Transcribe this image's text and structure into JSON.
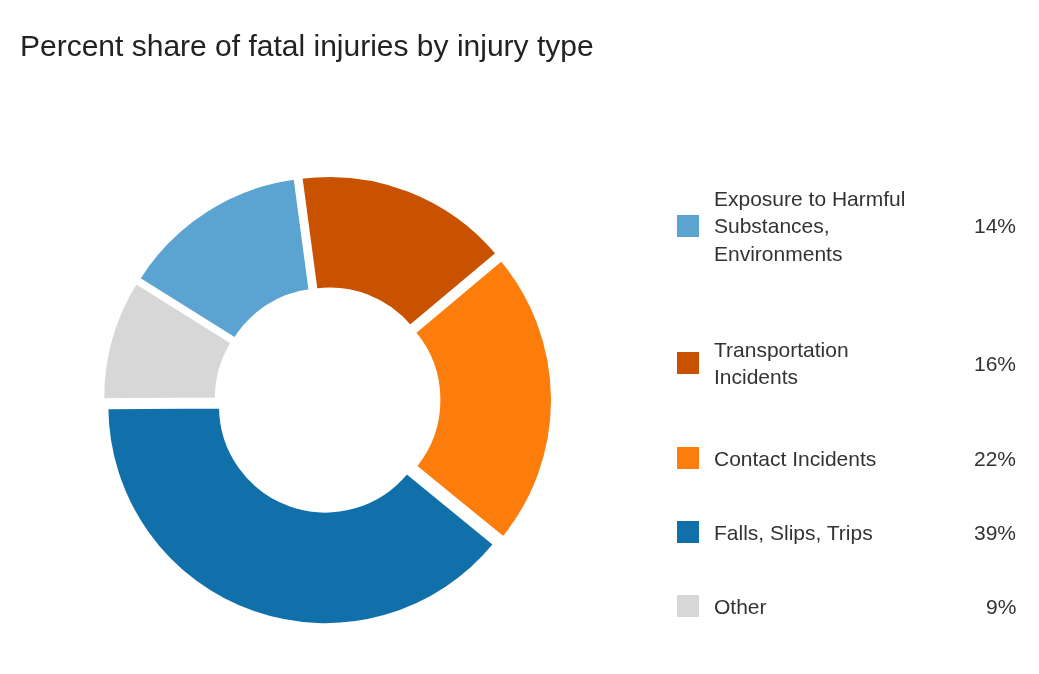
{
  "chart_data": {
    "type": "donut",
    "title": "Percent share of fatal injuries by injury type",
    "categories": [
      "Exposure to Harmful Substances, Environments",
      "Transportation Incidents",
      "Contact Incidents",
      "Falls, Slips, Trips",
      "Other"
    ],
    "values": [
      14,
      16,
      22,
      39,
      9
    ],
    "colors": [
      "#5ba3d0",
      "#c85200",
      "#fc7d0b",
      "#1170aa",
      "#d7d7d7"
    ],
    "value_labels": [
      "14%",
      "16%",
      "22%",
      "39%",
      "9%"
    ],
    "legend": "right"
  }
}
